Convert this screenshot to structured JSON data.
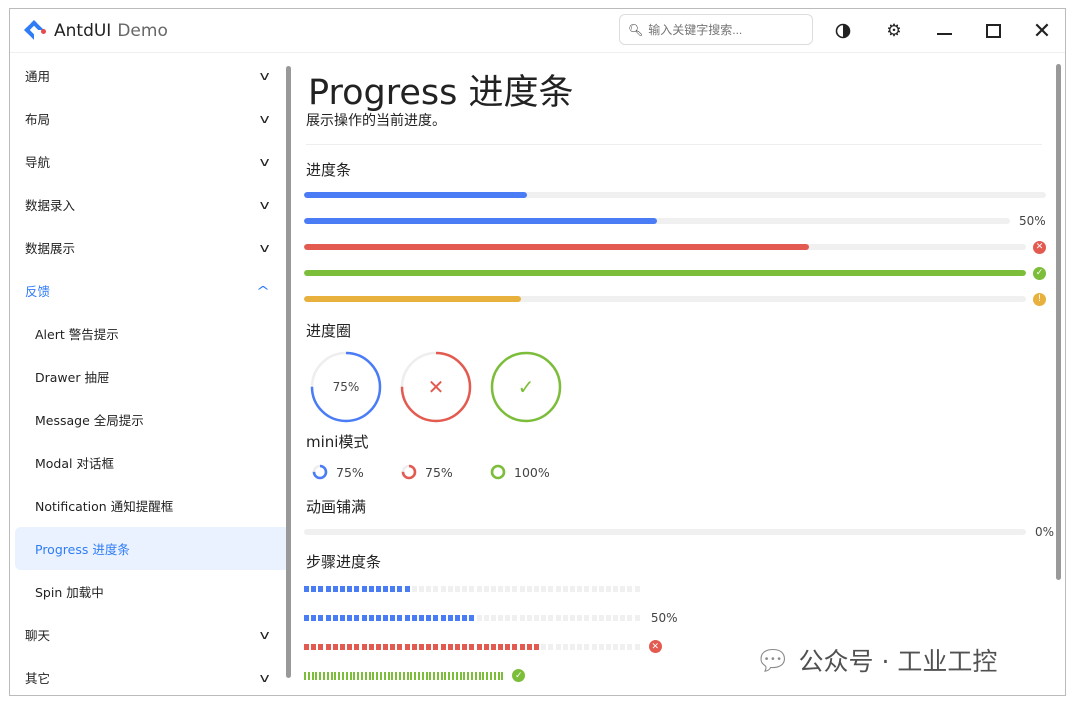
{
  "app": {
    "name": "AntdUI",
    "suffix": "Demo"
  },
  "search": {
    "placeholder": "输入关键字搜索..."
  },
  "titlebar_icons": [
    "theme-contrast-icon",
    "settings-gear-icon",
    "minimize-icon",
    "maximize-icon",
    "close-icon"
  ],
  "sidebar": {
    "items": [
      {
        "label": "通用",
        "state": "collapsed"
      },
      {
        "label": "布局",
        "state": "collapsed"
      },
      {
        "label": "导航",
        "state": "collapsed"
      },
      {
        "label": "数据录入",
        "state": "collapsed"
      },
      {
        "label": "数据展示",
        "state": "collapsed"
      },
      {
        "label": "反馈",
        "state": "expanded"
      },
      {
        "label": "Alert 警告提示",
        "sub": true
      },
      {
        "label": "Drawer 抽屉",
        "sub": true
      },
      {
        "label": "Message 全局提示",
        "sub": true
      },
      {
        "label": "Modal 对话框",
        "sub": true
      },
      {
        "label": "Notification 通知提醒框",
        "sub": true
      },
      {
        "label": "Progress 进度条",
        "sub": true,
        "active": true
      },
      {
        "label": "Spin 加载中",
        "sub": true
      },
      {
        "label": "聊天",
        "state": "collapsed"
      },
      {
        "label": "其它",
        "state": "collapsed"
      }
    ]
  },
  "main": {
    "title": "Progress 进度条",
    "description": "展示操作的当前进度。",
    "sections": {
      "bars": "进度条",
      "circles": "进度圈",
      "mini": "mini模式",
      "anim": "动画铺满",
      "steps": "步骤进度条"
    },
    "bars": [
      {
        "value": 30,
        "color": "#4a7cf6",
        "label": "",
        "status": ""
      },
      {
        "value": 50,
        "color": "#4a7cf6",
        "label": "50%",
        "status": ""
      },
      {
        "value": 70,
        "color": "#e35b50",
        "label": "",
        "status": "error"
      },
      {
        "value": 100,
        "color": "#7cbd3a",
        "label": "",
        "status": "success"
      },
      {
        "value": 30,
        "color": "#e8b03c",
        "label": "",
        "status": "warning"
      }
    ],
    "circles": [
      {
        "value": 75,
        "color": "#4a7cf6",
        "label": "75%",
        "status": ""
      },
      {
        "value": 75,
        "color": "#e35b50",
        "label": "",
        "status": "error"
      },
      {
        "value": 100,
        "color": "#7cbd3a",
        "label": "",
        "status": "success"
      }
    ],
    "minis": [
      {
        "value": 75,
        "color": "#4a7cf6",
        "label": "75%"
      },
      {
        "value": 75,
        "color": "#e35b50",
        "label": "75%"
      },
      {
        "value": 100,
        "color": "#7cbd3a",
        "label": "100%"
      }
    ],
    "anim": {
      "value": 0,
      "label": "0%"
    },
    "steps": [
      {
        "value": 32,
        "color": "#4a7cf6",
        "label": "",
        "status": ""
      },
      {
        "value": 50,
        "color": "#4a7cf6",
        "label": "50%",
        "status": ""
      },
      {
        "value": 70,
        "color": "#e35b50",
        "label": "",
        "status": "error"
      },
      {
        "value": 100,
        "color": "#7cbd3a",
        "label": "",
        "status": "success"
      }
    ]
  },
  "watermark": "公众号 · 工业工控"
}
